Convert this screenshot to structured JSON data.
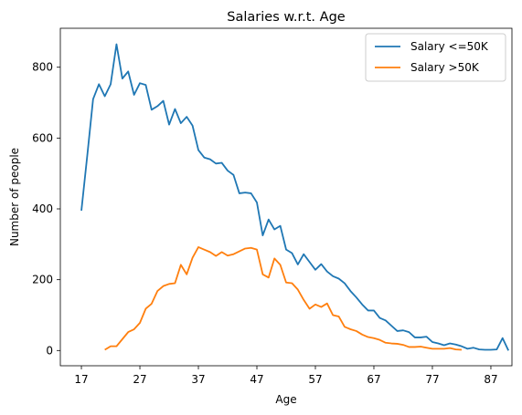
{
  "chart_data": {
    "type": "line",
    "title": "Salaries w.r.t. Age",
    "xlabel": "Age",
    "ylabel": "Number of people",
    "xticks": [
      17,
      27,
      37,
      47,
      57,
      67,
      77,
      87
    ],
    "yticks": [
      0,
      200,
      400,
      600,
      800
    ],
    "xlim": [
      13.4,
      90.6
    ],
    "ylim": [
      -43,
      910
    ],
    "grid": false,
    "legend_position": "top-right",
    "series": [
      {
        "name": "Salary <=50K",
        "color": "#1f77b4",
        "x": [
          17,
          18,
          19,
          20,
          21,
          22,
          23,
          24,
          25,
          26,
          27,
          28,
          29,
          30,
          31,
          32,
          33,
          34,
          35,
          36,
          37,
          38,
          39,
          40,
          41,
          42,
          43,
          44,
          45,
          46,
          47,
          48,
          49,
          50,
          51,
          52,
          53,
          54,
          55,
          56,
          57,
          58,
          59,
          60,
          61,
          62,
          63,
          64,
          65,
          66,
          67,
          68,
          69,
          70,
          71,
          72,
          73,
          74,
          75,
          76,
          77,
          78,
          79,
          80,
          81,
          82,
          83,
          84,
          85,
          86,
          87,
          88,
          89,
          90
        ],
        "values": [
          395,
          550,
          710,
          752,
          718,
          752,
          865,
          768,
          788,
          722,
          755,
          750,
          680,
          690,
          705,
          638,
          682,
          642,
          660,
          635,
          566,
          545,
          540,
          528,
          530,
          508,
          496,
          444,
          446,
          444,
          418,
          325,
          370,
          342,
          352,
          285,
          275,
          243,
          272,
          250,
          228,
          244,
          223,
          210,
          203,
          190,
          168,
          150,
          130,
          113,
          113,
          92,
          85,
          70,
          55,
          57,
          52,
          37,
          37,
          39,
          24,
          20,
          15,
          20,
          17,
          12,
          5,
          8,
          3,
          2,
          2,
          3,
          35,
          0
        ]
      },
      {
        "name": "Salary >50K",
        "color": "#ff7f0e",
        "x": [
          21,
          22,
          23,
          24,
          25,
          26,
          27,
          28,
          29,
          30,
          31,
          32,
          33,
          34,
          35,
          36,
          37,
          38,
          39,
          40,
          41,
          42,
          43,
          44,
          45,
          46,
          47,
          48,
          49,
          50,
          51,
          52,
          53,
          54,
          55,
          56,
          57,
          58,
          59,
          60,
          61,
          62,
          63,
          64,
          65,
          66,
          67,
          68,
          69,
          70,
          71,
          72,
          73,
          74,
          75,
          76,
          77,
          78,
          79,
          80,
          81,
          82,
          83,
          84
        ],
        "values": [
          2,
          12,
          12,
          32,
          52,
          60,
          78,
          118,
          132,
          168,
          182,
          188,
          190,
          242,
          215,
          262,
          292,
          285,
          278,
          267,
          278,
          268,
          272,
          280,
          288,
          290,
          285,
          215,
          206,
          260,
          242,
          192,
          190,
          172,
          143,
          118,
          130,
          123,
          133,
          100,
          96,
          67,
          60,
          55,
          45,
          38,
          35,
          30,
          22,
          20,
          19,
          16,
          10,
          10,
          11,
          8,
          5,
          5,
          5,
          7,
          3,
          2,
          null,
          2
        ]
      }
    ]
  }
}
